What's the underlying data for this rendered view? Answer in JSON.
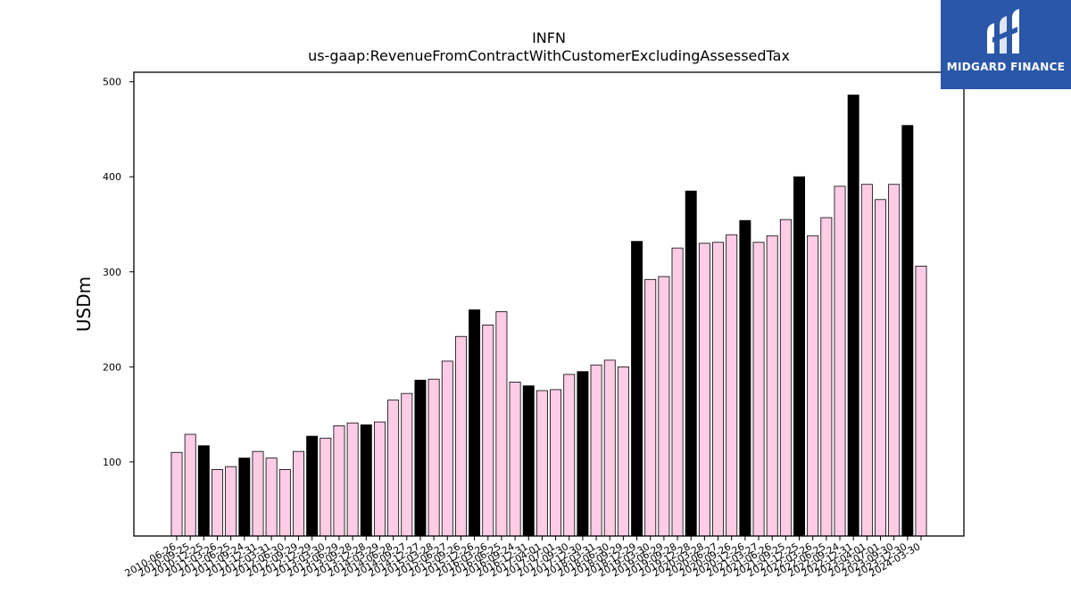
{
  "chart_data": {
    "type": "bar",
    "title": "INFN",
    "subtitle": "us-gaap:RevenueFromContractWithCustomerExcludingAssessedTax",
    "xlabel": "",
    "ylabel": "USDm",
    "ylim": [
      22,
      510
    ],
    "yticks": [
      100,
      200,
      300,
      400,
      500
    ],
    "grid": false,
    "colors": {
      "quarter": "#ffcce6",
      "annual": "#000000",
      "edge": "#000000"
    },
    "categories": [
      "2010-06-26",
      "2010-09-25",
      "2010-12-25",
      "2011-03-26",
      "2011-06-25",
      "2011-09-24",
      "2011-12-31",
      "2012-03-31",
      "2012-06-30",
      "2012-09-29",
      "2012-12-29",
      "2013-03-30",
      "2013-06-29",
      "2013-09-28",
      "2013-12-28",
      "2014-03-29",
      "2014-06-28",
      "2014-09-27",
      "2014-12-27",
      "2015-03-28",
      "2015-06-27",
      "2015-09-26",
      "2015-12-26",
      "2016-03-26",
      "2016-06-25",
      "2016-09-24",
      "2016-12-31",
      "2017-04-01",
      "2017-07-01",
      "2017-09-30",
      "2017-12-30",
      "2018-03-31",
      "2018-06-30",
      "2018-09-29",
      "2018-12-29",
      "2019-03-30",
      "2019-06-29",
      "2019-09-28",
      "2019-12-28",
      "2020-03-28",
      "2020-06-27",
      "2020-09-26",
      "2020-12-26",
      "2021-03-27",
      "2021-06-26",
      "2021-09-25",
      "2021-12-25",
      "2022-03-26",
      "2022-06-25",
      "2022-09-24",
      "2022-12-31",
      "2023-04-01",
      "2023-07-01",
      "2023-09-30",
      "2023-12-30",
      "2024-03-30"
    ],
    "values": [
      110,
      129,
      117,
      92,
      95,
      104,
      111,
      104,
      92,
      111,
      127,
      125,
      138,
      141,
      139,
      142,
      165,
      172,
      186,
      187,
      206,
      232,
      260,
      244,
      258,
      184,
      180,
      175,
      176,
      192,
      195,
      202,
      207,
      200,
      332,
      292,
      295,
      325,
      385,
      330,
      331,
      339,
      354,
      331,
      338,
      355,
      400,
      338,
      357,
      390,
      486,
      392,
      376,
      392,
      454,
      306
    ],
    "annual_flags": [
      false,
      false,
      true,
      false,
      false,
      true,
      false,
      false,
      false,
      false,
      true,
      false,
      false,
      false,
      true,
      false,
      false,
      false,
      true,
      false,
      false,
      false,
      true,
      false,
      false,
      false,
      true,
      false,
      false,
      false,
      true,
      false,
      false,
      false,
      true,
      false,
      false,
      false,
      true,
      false,
      false,
      false,
      true,
      false,
      false,
      false,
      true,
      false,
      false,
      false,
      true,
      false,
      false,
      false,
      true,
      false
    ]
  },
  "logo": {
    "text": "MIDGARD FINANCE"
  }
}
